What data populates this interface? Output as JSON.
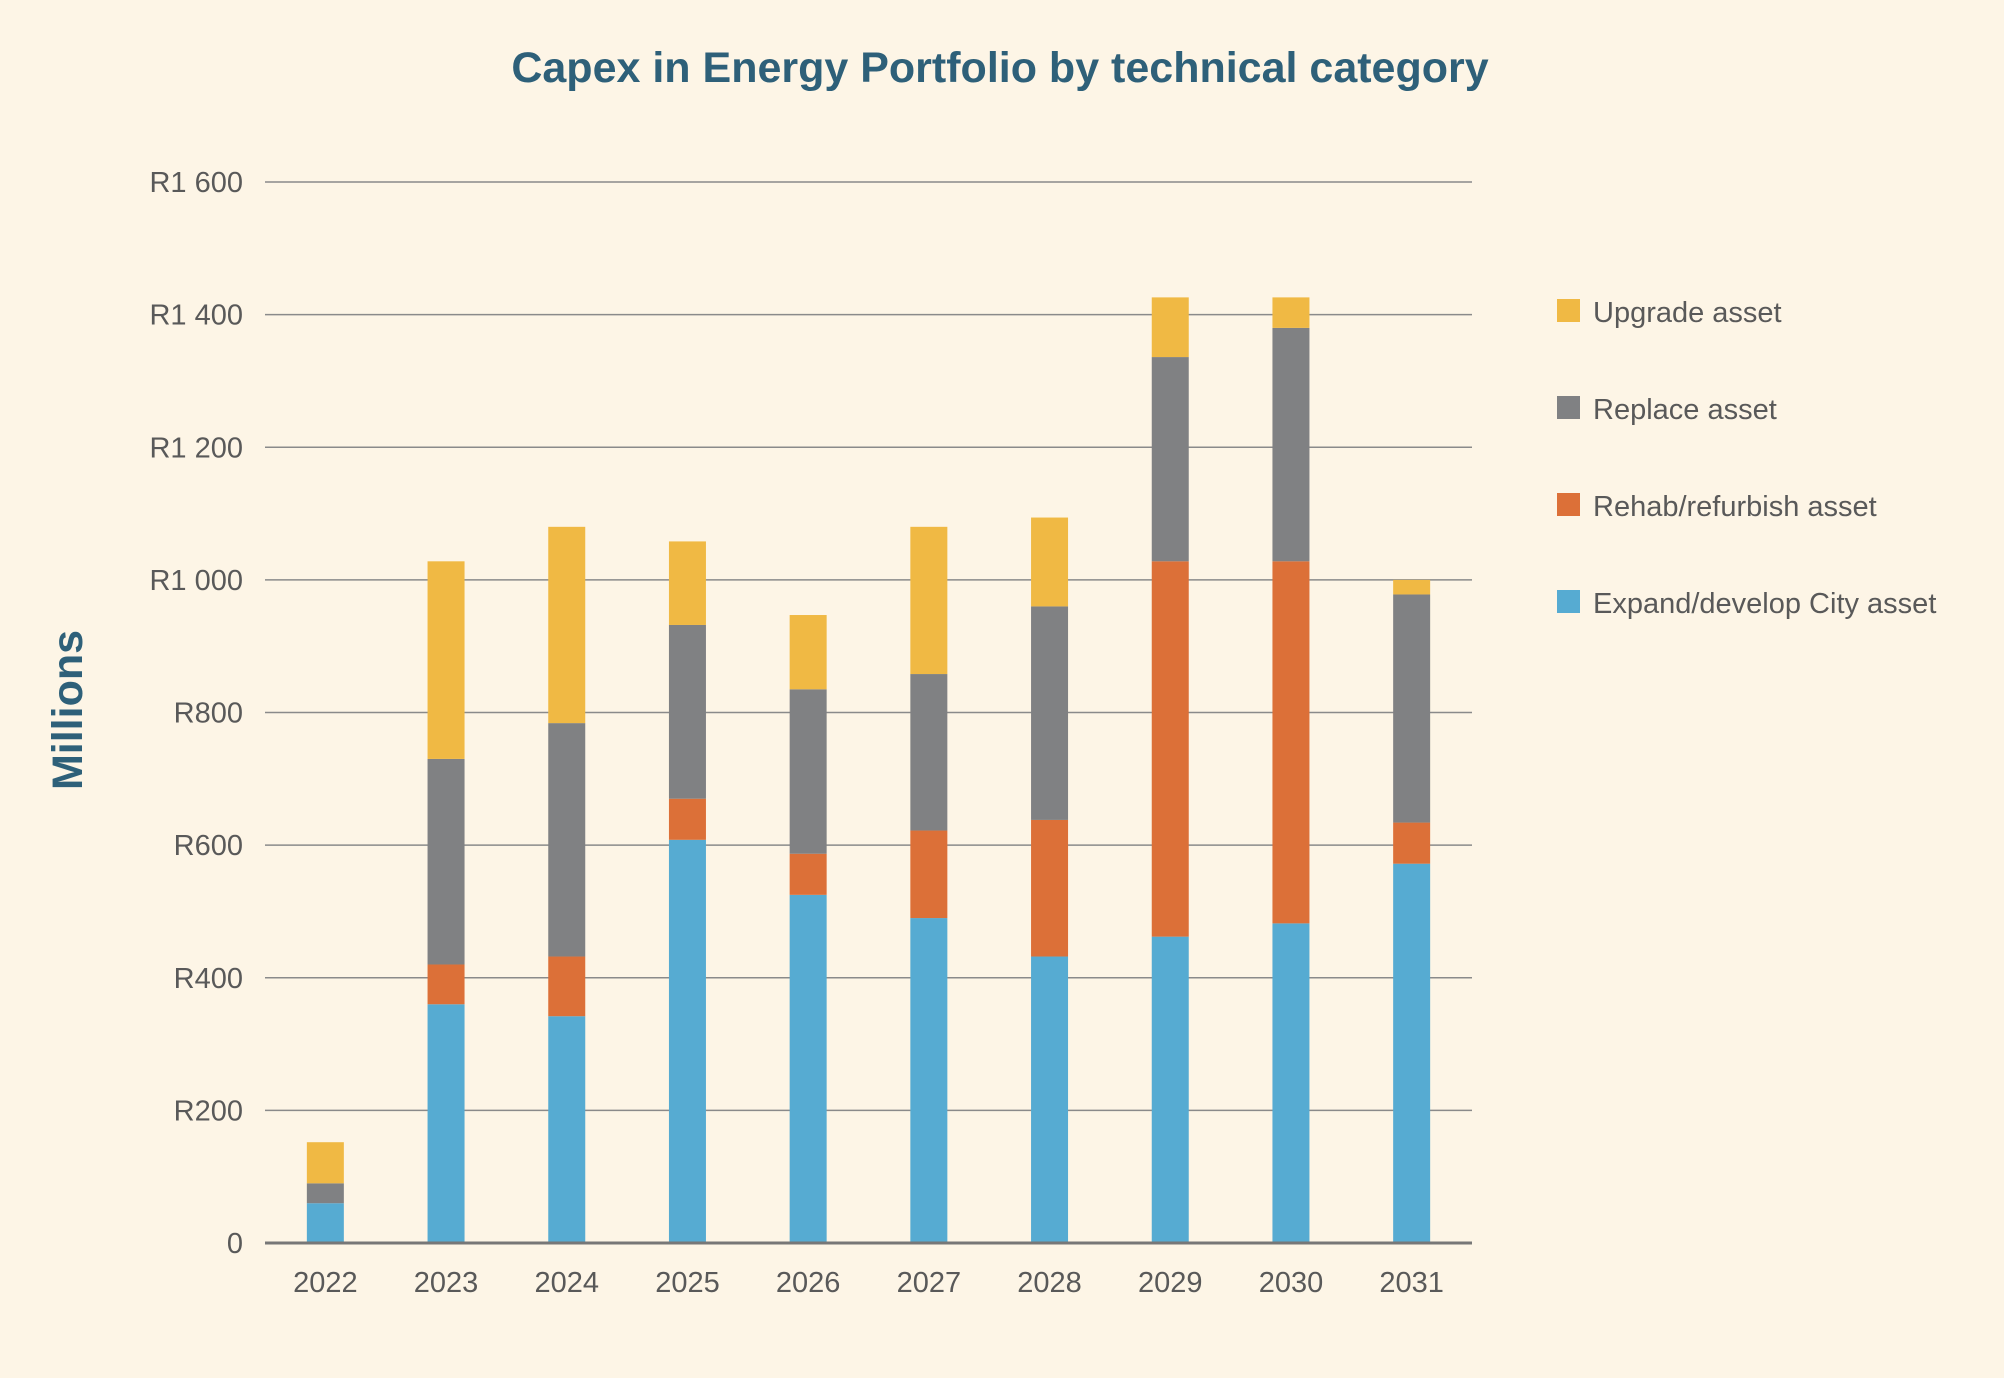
{
  "chart_data": {
    "type": "bar",
    "stacked": true,
    "title": "Capex in Energy Portfolio by technical category",
    "xlabel": "",
    "ylabel": "Millions",
    "categories": [
      "2022",
      "2023",
      "2024",
      "2025",
      "2026",
      "2027",
      "2028",
      "2029",
      "2030",
      "2031"
    ],
    "ylim": [
      0,
      1600
    ],
    "yticks": [
      0,
      200,
      400,
      600,
      800,
      1000,
      1200,
      1400,
      1600
    ],
    "ytick_labels": [
      "0",
      "R200",
      "R400",
      "R600",
      "R800",
      "R1 000",
      "R1 200",
      "R1 400",
      "R1 600"
    ],
    "grid": true,
    "legend_position": "right",
    "series": [
      {
        "name": "Expand/develop City asset",
        "color": "#56abd2",
        "values": [
          60,
          360,
          342,
          608,
          525,
          490,
          432,
          462,
          482,
          572
        ]
      },
      {
        "name": "Rehab/refurbish asset",
        "color": "#dc7038",
        "values": [
          0,
          60,
          90,
          62,
          62,
          132,
          206,
          566,
          546,
          62
        ]
      },
      {
        "name": "Replace asset",
        "color": "#808183",
        "values": [
          30,
          310,
          352,
          262,
          248,
          236,
          322,
          308,
          352,
          344
        ]
      },
      {
        "name": "Upgrade asset",
        "color": "#f0b944",
        "values": [
          62,
          298,
          296,
          126,
          112,
          222,
          134,
          90,
          46,
          22
        ]
      }
    ],
    "legend_order": [
      "Upgrade asset",
      "Replace asset",
      "Rehab/refurbish asset",
      "Expand/develop City asset"
    ]
  }
}
